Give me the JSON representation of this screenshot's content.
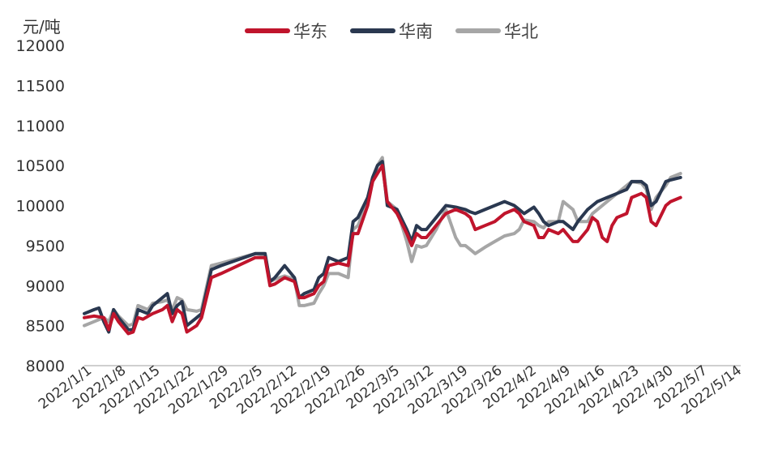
{
  "chart_data": {
    "type": "line",
    "title": "",
    "ylabel": "元/吨",
    "xlabel": "",
    "ylim": [
      8000,
      12000
    ],
    "yticks": [
      8000,
      8500,
      9000,
      9500,
      10000,
      10500,
      11000,
      11500,
      12000
    ],
    "xticks": [
      "2022/1/1",
      "2022/1/8",
      "2022/1/15",
      "2022/1/22",
      "2022/1/29",
      "2022/2/5",
      "2022/2/12",
      "2022/2/19",
      "2022/2/26",
      "2022/3/5",
      "2022/3/12",
      "2022/3/19",
      "2022/3/26",
      "2022/4/2",
      "2022/4/9",
      "2022/4/16",
      "2022/4/23",
      "2022/4/30",
      "2022/5/7",
      "2022/5/14"
    ],
    "grid": false,
    "legend_position": "top-center",
    "series": [
      {
        "name": "华东",
        "color": "#c0142c",
        "points": [
          [
            "2022-01-01",
            8600
          ],
          [
            "2022-01-03",
            8620
          ],
          [
            "2022-01-05",
            8600
          ],
          [
            "2022-01-06",
            8450
          ],
          [
            "2022-01-07",
            8650
          ],
          [
            "2022-01-08",
            8550
          ],
          [
            "2022-01-10",
            8400
          ],
          [
            "2022-01-11",
            8420
          ],
          [
            "2022-01-12",
            8600
          ],
          [
            "2022-01-13",
            8580
          ],
          [
            "2022-01-15",
            8650
          ],
          [
            "2022-01-17",
            8700
          ],
          [
            "2022-01-18",
            8750
          ],
          [
            "2022-01-19",
            8550
          ],
          [
            "2022-01-20",
            8700
          ],
          [
            "2022-01-21",
            8650
          ],
          [
            "2022-01-22",
            8420
          ],
          [
            "2022-01-24",
            8500
          ],
          [
            "2022-01-25",
            8600
          ],
          [
            "2022-01-27",
            9100
          ],
          [
            "2022-01-29",
            9150
          ],
          [
            "2022-02-05",
            9350
          ],
          [
            "2022-02-07",
            9350
          ],
          [
            "2022-02-08",
            9000
          ],
          [
            "2022-02-09",
            9020
          ],
          [
            "2022-02-11",
            9100
          ],
          [
            "2022-02-13",
            9050
          ],
          [
            "2022-02-14",
            8850
          ],
          [
            "2022-02-15",
            8850
          ],
          [
            "2022-02-17",
            8900
          ],
          [
            "2022-02-18",
            9000
          ],
          [
            "2022-02-19",
            9050
          ],
          [
            "2022-02-20",
            9250
          ],
          [
            "2022-02-22",
            9280
          ],
          [
            "2022-02-24",
            9250
          ],
          [
            "2022-02-25",
            9650
          ],
          [
            "2022-02-26",
            9650
          ],
          [
            "2022-02-28",
            10000
          ],
          [
            "2022-03-01",
            10300
          ],
          [
            "2022-03-02",
            10400
          ],
          [
            "2022-03-03",
            10500
          ],
          [
            "2022-03-04",
            10050
          ],
          [
            "2022-03-06",
            9900
          ],
          [
            "2022-03-08",
            9650
          ],
          [
            "2022-03-09",
            9500
          ],
          [
            "2022-03-10",
            9650
          ],
          [
            "2022-03-11",
            9600
          ],
          [
            "2022-03-12",
            9600
          ],
          [
            "2022-03-14",
            9750
          ],
          [
            "2022-03-16",
            9900
          ],
          [
            "2022-03-18",
            9950
          ],
          [
            "2022-03-20",
            9900
          ],
          [
            "2022-03-21",
            9850
          ],
          [
            "2022-03-22",
            9700
          ],
          [
            "2022-03-24",
            9750
          ],
          [
            "2022-03-26",
            9800
          ],
          [
            "2022-03-28",
            9900
          ],
          [
            "2022-03-30",
            9950
          ],
          [
            "2022-03-31",
            9900
          ],
          [
            "2022-04-01",
            9800
          ],
          [
            "2022-04-03",
            9750
          ],
          [
            "2022-04-04",
            9600
          ],
          [
            "2022-04-05",
            9600
          ],
          [
            "2022-04-06",
            9700
          ],
          [
            "2022-04-08",
            9650
          ],
          [
            "2022-04-09",
            9700
          ],
          [
            "2022-04-11",
            9550
          ],
          [
            "2022-04-12",
            9550
          ],
          [
            "2022-04-14",
            9700
          ],
          [
            "2022-04-15",
            9850
          ],
          [
            "2022-04-16",
            9800
          ],
          [
            "2022-04-17",
            9600
          ],
          [
            "2022-04-18",
            9550
          ],
          [
            "2022-04-19",
            9750
          ],
          [
            "2022-04-20",
            9850
          ],
          [
            "2022-04-22",
            9900
          ],
          [
            "2022-04-23",
            10100
          ],
          [
            "2022-04-25",
            10150
          ],
          [
            "2022-04-26",
            10100
          ],
          [
            "2022-04-27",
            9800
          ],
          [
            "2022-04-28",
            9750
          ],
          [
            "2022-04-30",
            10000
          ],
          [
            "2022-05-01",
            10050
          ],
          [
            "2022-05-03",
            10100
          ]
        ]
      },
      {
        "name": "华南",
        "color": "#2a3850",
        "points": [
          [
            "2022-01-01",
            8650
          ],
          [
            "2022-01-03",
            8700
          ],
          [
            "2022-01-04",
            8720
          ],
          [
            "2022-01-05",
            8550
          ],
          [
            "2022-01-06",
            8420
          ],
          [
            "2022-01-07",
            8700
          ],
          [
            "2022-01-08",
            8600
          ],
          [
            "2022-01-10",
            8450
          ],
          [
            "2022-01-11",
            8450
          ],
          [
            "2022-01-12",
            8700
          ],
          [
            "2022-01-14",
            8650
          ],
          [
            "2022-01-15",
            8750
          ],
          [
            "2022-01-17",
            8850
          ],
          [
            "2022-01-18",
            8900
          ],
          [
            "2022-01-19",
            8650
          ],
          [
            "2022-01-20",
            8750
          ],
          [
            "2022-01-21",
            8800
          ],
          [
            "2022-01-22",
            8500
          ],
          [
            "2022-01-24",
            8600
          ],
          [
            "2022-01-25",
            8650
          ],
          [
            "2022-01-27",
            9200
          ],
          [
            "2022-01-29",
            9250
          ],
          [
            "2022-02-05",
            9400
          ],
          [
            "2022-02-07",
            9400
          ],
          [
            "2022-02-08",
            9050
          ],
          [
            "2022-02-09",
            9100
          ],
          [
            "2022-02-11",
            9250
          ],
          [
            "2022-02-13",
            9100
          ],
          [
            "2022-02-14",
            8850
          ],
          [
            "2022-02-15",
            8900
          ],
          [
            "2022-02-17",
            8950
          ],
          [
            "2022-02-18",
            9100
          ],
          [
            "2022-02-19",
            9150
          ],
          [
            "2022-02-20",
            9350
          ],
          [
            "2022-02-22",
            9300
          ],
          [
            "2022-02-24",
            9350
          ],
          [
            "2022-02-25",
            9800
          ],
          [
            "2022-02-26",
            9850
          ],
          [
            "2022-02-28",
            10100
          ],
          [
            "2022-03-01",
            10350
          ],
          [
            "2022-03-02",
            10500
          ],
          [
            "2022-03-03",
            10550
          ],
          [
            "2022-03-04",
            10000
          ],
          [
            "2022-03-06",
            9950
          ],
          [
            "2022-03-08",
            9700
          ],
          [
            "2022-03-09",
            9550
          ],
          [
            "2022-03-10",
            9750
          ],
          [
            "2022-03-11",
            9700
          ],
          [
            "2022-03-12",
            9700
          ],
          [
            "2022-03-14",
            9850
          ],
          [
            "2022-03-16",
            10000
          ],
          [
            "2022-03-18",
            9980
          ],
          [
            "2022-03-20",
            9950
          ],
          [
            "2022-03-21",
            9920
          ],
          [
            "2022-03-22",
            9900
          ],
          [
            "2022-03-24",
            9950
          ],
          [
            "2022-03-26",
            10000
          ],
          [
            "2022-03-28",
            10050
          ],
          [
            "2022-03-30",
            10000
          ],
          [
            "2022-03-31",
            9950
          ],
          [
            "2022-04-01",
            9900
          ],
          [
            "2022-04-03",
            9980
          ],
          [
            "2022-04-04",
            9900
          ],
          [
            "2022-04-05",
            9800
          ],
          [
            "2022-04-06",
            9750
          ],
          [
            "2022-04-08",
            9800
          ],
          [
            "2022-04-09",
            9800
          ],
          [
            "2022-04-11",
            9700
          ],
          [
            "2022-04-12",
            9800
          ],
          [
            "2022-04-14",
            9950
          ],
          [
            "2022-04-15",
            10000
          ],
          [
            "2022-04-16",
            10050
          ],
          [
            "2022-04-18",
            10100
          ],
          [
            "2022-04-20",
            10150
          ],
          [
            "2022-04-22",
            10200
          ],
          [
            "2022-04-23",
            10300
          ],
          [
            "2022-04-25",
            10300
          ],
          [
            "2022-04-26",
            10250
          ],
          [
            "2022-04-27",
            10000
          ],
          [
            "2022-04-28",
            10050
          ],
          [
            "2022-04-30",
            10300
          ],
          [
            "2022-05-01",
            10320
          ],
          [
            "2022-05-03",
            10350
          ]
        ]
      },
      {
        "name": "华北",
        "color": "#a6a6a6",
        "points": [
          [
            "2022-01-01",
            8500
          ],
          [
            "2022-01-03",
            8550
          ],
          [
            "2022-01-05",
            8600
          ],
          [
            "2022-01-06",
            8550
          ],
          [
            "2022-01-07",
            8700
          ],
          [
            "2022-01-08",
            8620
          ],
          [
            "2022-01-10",
            8500
          ],
          [
            "2022-01-11",
            8520
          ],
          [
            "2022-01-12",
            8750
          ],
          [
            "2022-01-14",
            8700
          ],
          [
            "2022-01-15",
            8780
          ],
          [
            "2022-01-17",
            8800
          ],
          [
            "2022-01-18",
            8820
          ],
          [
            "2022-01-19",
            8700
          ],
          [
            "2022-01-20",
            8850
          ],
          [
            "2022-01-21",
            8820
          ],
          [
            "2022-01-22",
            8700
          ],
          [
            "2022-01-24",
            8680
          ],
          [
            "2022-01-25",
            8700
          ],
          [
            "2022-01-27",
            9250
          ],
          [
            "2022-01-29",
            9280
          ],
          [
            "2022-02-05",
            9400
          ],
          [
            "2022-02-07",
            9380
          ],
          [
            "2022-02-08",
            9050
          ],
          [
            "2022-02-09",
            9080
          ],
          [
            "2022-02-11",
            9120
          ],
          [
            "2022-02-13",
            9080
          ],
          [
            "2022-02-14",
            8750
          ],
          [
            "2022-02-15",
            8750
          ],
          [
            "2022-02-17",
            8780
          ],
          [
            "2022-02-18",
            8900
          ],
          [
            "2022-02-19",
            9000
          ],
          [
            "2022-02-20",
            9150
          ],
          [
            "2022-02-22",
            9150
          ],
          [
            "2022-02-24",
            9100
          ],
          [
            "2022-02-25",
            9700
          ],
          [
            "2022-02-26",
            9750
          ],
          [
            "2022-02-28",
            10050
          ],
          [
            "2022-03-01",
            10300
          ],
          [
            "2022-03-02",
            10500
          ],
          [
            "2022-03-03",
            10600
          ],
          [
            "2022-03-04",
            10050
          ],
          [
            "2022-03-06",
            9950
          ],
          [
            "2022-03-08",
            9550
          ],
          [
            "2022-03-09",
            9300
          ],
          [
            "2022-03-10",
            9500
          ],
          [
            "2022-03-11",
            9480
          ],
          [
            "2022-03-12",
            9500
          ],
          [
            "2022-03-14",
            9700
          ],
          [
            "2022-03-16",
            9950
          ],
          [
            "2022-03-18",
            9600
          ],
          [
            "2022-03-19",
            9500
          ],
          [
            "2022-03-20",
            9500
          ],
          [
            "2022-03-21",
            9450
          ],
          [
            "2022-03-22",
            9400
          ],
          [
            "2022-03-24",
            9480
          ],
          [
            "2022-03-26",
            9550
          ],
          [
            "2022-03-28",
            9620
          ],
          [
            "2022-03-30",
            9650
          ],
          [
            "2022-03-31",
            9700
          ],
          [
            "2022-04-01",
            9820
          ],
          [
            "2022-04-03",
            9800
          ],
          [
            "2022-04-04",
            9750
          ],
          [
            "2022-04-05",
            9720
          ],
          [
            "2022-04-06",
            9800
          ],
          [
            "2022-04-08",
            9800
          ],
          [
            "2022-04-09",
            10050
          ],
          [
            "2022-04-11",
            9950
          ],
          [
            "2022-04-12",
            9800
          ],
          [
            "2022-04-14",
            9800
          ],
          [
            "2022-04-15",
            9900
          ],
          [
            "2022-04-16",
            9950
          ],
          [
            "2022-04-18",
            10050
          ],
          [
            "2022-04-20",
            10150
          ],
          [
            "2022-04-22",
            10250
          ],
          [
            "2022-04-23",
            10300
          ],
          [
            "2022-04-25",
            10280
          ],
          [
            "2022-04-26",
            10200
          ],
          [
            "2022-04-27",
            9950
          ],
          [
            "2022-04-28",
            10100
          ],
          [
            "2022-04-30",
            10250
          ],
          [
            "2022-05-01",
            10350
          ],
          [
            "2022-05-03",
            10400
          ]
        ]
      }
    ]
  }
}
